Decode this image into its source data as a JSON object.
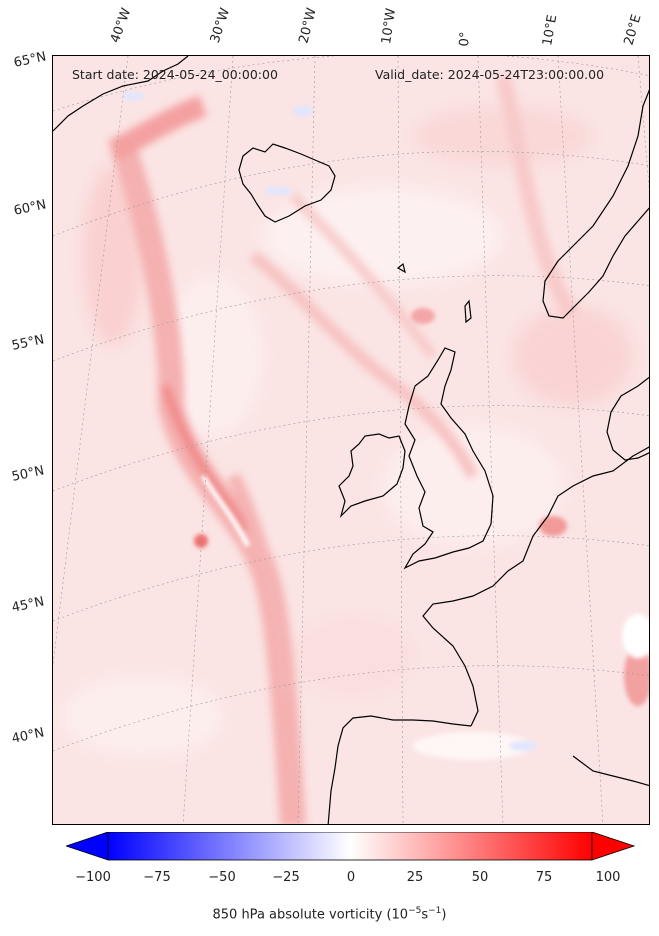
{
  "header": {
    "start_date": "Start date: 2024-05-24_00:00:00",
    "valid_date": "Valid_date: 2024-05-24T23:00:00.00"
  },
  "longitude_labels": [
    "40°W",
    "30°W",
    "20°W",
    "10°W",
    "0°",
    "10°E",
    "20°E"
  ],
  "latitude_labels": [
    "65°N",
    "60°N",
    "55°N",
    "50°N",
    "45°N",
    "40°N"
  ],
  "colorbar": {
    "tick_labels": [
      "−100",
      "−75",
      "−50",
      "−25",
      "0",
      "25",
      "50",
      "75",
      "100"
    ],
    "title": "850 hPa absolute vorticity (10",
    "title_exp1": "−5",
    "title_mid": "s",
    "title_exp2": "−1",
    "title_end": ")",
    "range": [
      -100,
      100
    ],
    "extend": "both",
    "cmap_colors": [
      "#0000ff",
      "#ffffff",
      "#ff0000"
    ]
  },
  "map": {
    "projection": "conic",
    "field": "850 hPa absolute vorticity",
    "background_color": "#fbe6e6",
    "coastline_color": "#000000"
  }
}
